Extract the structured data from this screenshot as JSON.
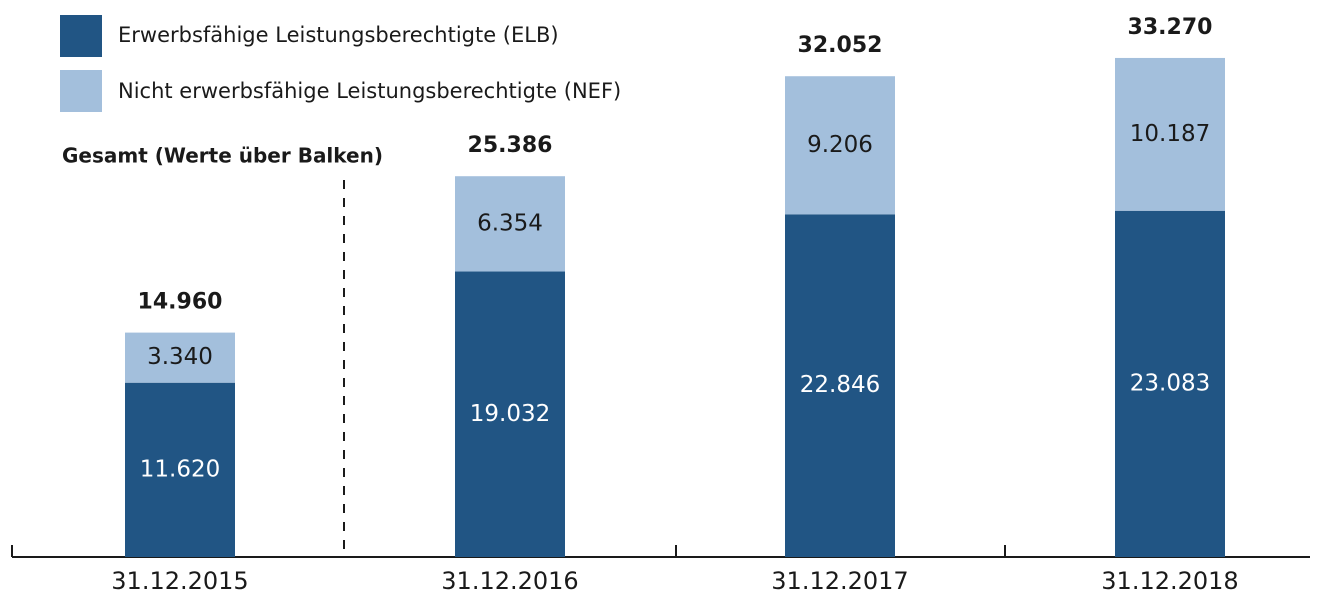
{
  "chart_data": {
    "type": "stacked_bar",
    "annotation": "Gesamt (Werte über Balken)",
    "categories": [
      "31.12.2015",
      "31.12.2016",
      "31.12.2017",
      "31.12.2018"
    ],
    "series": [
      {
        "name": "Erwerbsfähige Leistungsberechtigte (ELB)",
        "color": "#215584",
        "label_color": "#ffffff",
        "values": [
          11620,
          19032,
          22846,
          23083
        ],
        "value_labels": [
          "11.620",
          "19.032",
          "22.846",
          "23.083"
        ]
      },
      {
        "name": "Nicht erwerbsfähige Leistungsberechtigte (NEF)",
        "color": "#a3bfdc",
        "label_color": "#1a1a1a",
        "values": [
          3340,
          6354,
          9206,
          10187
        ],
        "value_labels": [
          "3.340",
          "6.354",
          "9.206",
          "10.187"
        ]
      }
    ],
    "totals": {
      "values": [
        14960,
        25386,
        32052,
        33270
      ],
      "value_labels": [
        "14.960",
        "25.386",
        "32.052",
        "33.270"
      ]
    },
    "ylim": [
      0,
      36000
    ]
  }
}
